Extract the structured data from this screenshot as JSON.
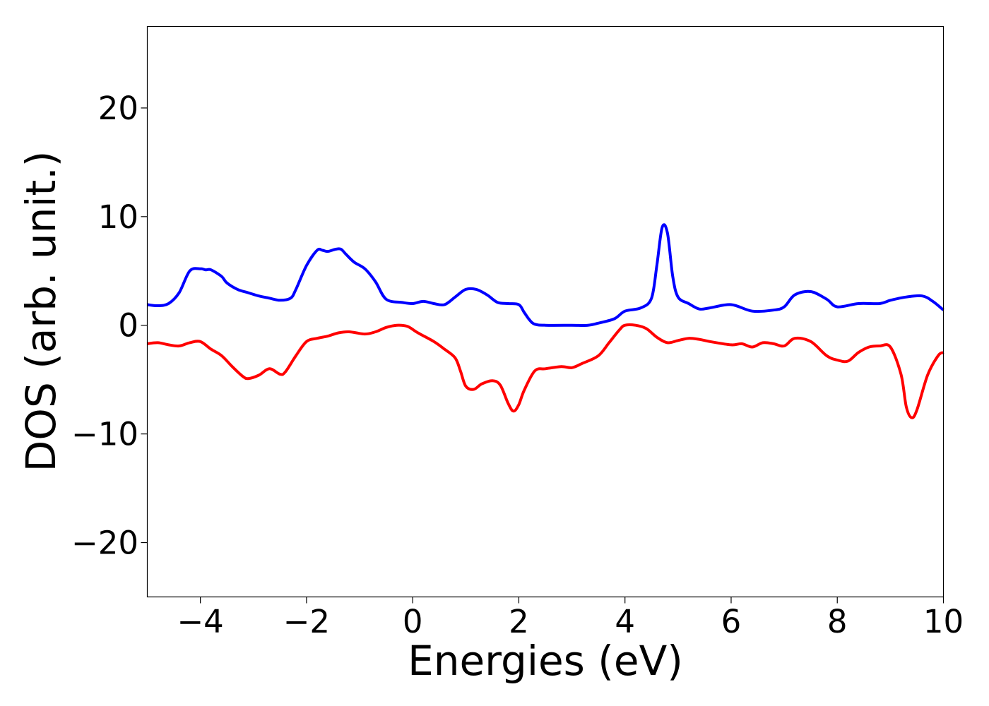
{
  "chart_data": {
    "type": "line",
    "title": "",
    "xlabel": "Energies (eV)",
    "ylabel": "DOS (arb. unit.)",
    "xlim": [
      -5,
      10
    ],
    "ylim": [
      -25,
      27.5
    ],
    "xticks": [
      -4,
      -2,
      0,
      2,
      4,
      6,
      8,
      10
    ],
    "yticks": [
      -20,
      -10,
      0,
      10,
      20
    ],
    "xtick_labels": [
      "−4",
      "−2",
      "0",
      "2",
      "4",
      "6",
      "8",
      "10"
    ],
    "ytick_labels": [
      "−20",
      "−10",
      "0",
      "10",
      "20"
    ],
    "grid": false,
    "legend": false,
    "series": [
      {
        "color": "#0000ff",
        "x": [
          -5.0,
          -4.8,
          -4.6,
          -4.4,
          -4.2,
          -4.0,
          -3.9,
          -3.8,
          -3.6,
          -3.5,
          -3.3,
          -3.1,
          -2.9,
          -2.7,
          -2.5,
          -2.3,
          -2.2,
          -2.0,
          -1.8,
          -1.7,
          -1.6,
          -1.45,
          -1.35,
          -1.25,
          -1.1,
          -0.9,
          -0.7,
          -0.5,
          -0.2,
          0.0,
          0.2,
          0.4,
          0.6,
          0.8,
          1.0,
          1.2,
          1.4,
          1.6,
          1.8,
          2.0,
          2.1,
          2.2,
          2.3,
          2.5,
          3.0,
          3.3,
          3.5,
          3.8,
          4.0,
          4.3,
          4.5,
          4.6,
          4.7,
          4.8,
          4.9,
          5.0,
          5.2,
          5.4,
          5.6,
          6.0,
          6.4,
          6.8,
          7.0,
          7.2,
          7.5,
          7.8,
          8.0,
          8.4,
          8.8,
          9.0,
          9.3,
          9.6,
          9.8,
          10.0
        ],
        "values": [
          1.9,
          1.8,
          2.0,
          3.0,
          5.0,
          5.2,
          5.1,
          5.1,
          4.5,
          3.9,
          3.3,
          3.0,
          2.7,
          2.5,
          2.3,
          2.5,
          3.3,
          5.5,
          6.9,
          6.9,
          6.8,
          7.0,
          7.0,
          6.5,
          5.8,
          5.2,
          4.0,
          2.4,
          2.1,
          2.0,
          2.2,
          2.0,
          1.9,
          2.6,
          3.3,
          3.3,
          2.8,
          2.1,
          2.0,
          1.9,
          1.2,
          0.5,
          0.1,
          0.0,
          0.0,
          0.0,
          0.2,
          0.6,
          1.3,
          1.6,
          2.5,
          5.5,
          9.0,
          8.5,
          4.5,
          2.6,
          2.0,
          1.5,
          1.6,
          1.9,
          1.3,
          1.4,
          1.7,
          2.8,
          3.1,
          2.4,
          1.7,
          2.0,
          2.0,
          2.3,
          2.6,
          2.7,
          2.2,
          1.4
        ]
      },
      {
        "color": "#ff0000",
        "x": [
          -5.0,
          -4.8,
          -4.6,
          -4.4,
          -4.2,
          -4.0,
          -3.8,
          -3.6,
          -3.4,
          -3.2,
          -3.1,
          -2.9,
          -2.7,
          -2.5,
          -2.4,
          -2.2,
          -2.0,
          -1.8,
          -1.6,
          -1.4,
          -1.2,
          -0.9,
          -0.7,
          -0.5,
          -0.3,
          -0.1,
          0.1,
          0.4,
          0.6,
          0.8,
          0.9,
          1.0,
          1.15,
          1.3,
          1.5,
          1.65,
          1.8,
          1.9,
          2.0,
          2.1,
          2.3,
          2.5,
          2.8,
          3.0,
          3.2,
          3.5,
          3.7,
          3.9,
          4.0,
          4.2,
          4.4,
          4.6,
          4.8,
          5.0,
          5.2,
          5.4,
          5.6,
          6.0,
          6.2,
          6.4,
          6.6,
          6.8,
          7.0,
          7.2,
          7.5,
          7.8,
          8.0,
          8.2,
          8.4,
          8.6,
          8.8,
          9.0,
          9.2,
          9.3,
          9.4,
          9.5,
          9.7,
          9.9,
          10.0
        ],
        "values": [
          -1.7,
          -1.6,
          -1.8,
          -1.9,
          -1.6,
          -1.5,
          -2.2,
          -2.8,
          -3.8,
          -4.7,
          -4.9,
          -4.6,
          -4.0,
          -4.5,
          -4.3,
          -2.8,
          -1.5,
          -1.2,
          -1.0,
          -0.7,
          -0.6,
          -0.8,
          -0.6,
          -0.2,
          0.0,
          -0.1,
          -0.7,
          -1.5,
          -2.2,
          -3.0,
          -4.2,
          -5.6,
          -5.9,
          -5.4,
          -5.1,
          -5.5,
          -7.2,
          -7.9,
          -7.3,
          -6.0,
          -4.2,
          -4.0,
          -3.8,
          -3.9,
          -3.5,
          -2.8,
          -1.6,
          -0.4,
          0.0,
          0.0,
          -0.3,
          -1.1,
          -1.6,
          -1.4,
          -1.2,
          -1.3,
          -1.5,
          -1.8,
          -1.7,
          -2.0,
          -1.6,
          -1.7,
          -1.9,
          -1.2,
          -1.5,
          -2.8,
          -3.2,
          -3.3,
          -2.5,
          -2.0,
          -1.9,
          -2.0,
          -4.5,
          -7.5,
          -8.5,
          -7.8,
          -4.6,
          -2.8,
          -2.5
        ]
      }
    ]
  }
}
